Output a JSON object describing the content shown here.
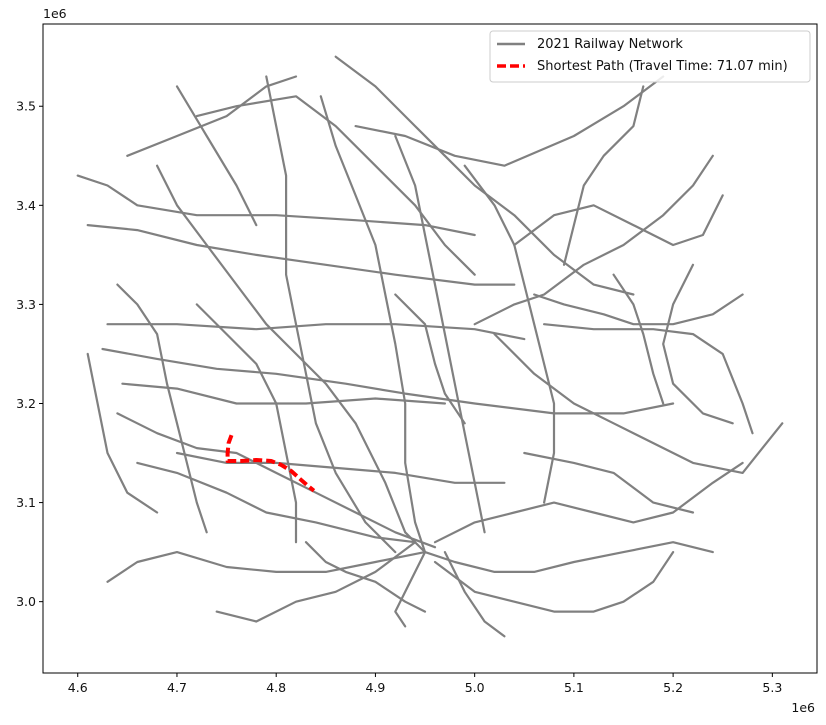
{
  "figure": {
    "x_offset_label": "1e6",
    "y_offset_label": "1e6"
  },
  "map_data": {
    "type": "line",
    "xlim": [
      4.565,
      5.345
    ],
    "ylim": [
      2.928,
      3.583
    ],
    "x_ticks": [
      {
        "value": 4.6,
        "label": "4.6"
      },
      {
        "value": 4.7,
        "label": "4.7"
      },
      {
        "value": 4.8,
        "label": "4.8"
      },
      {
        "value": 4.9,
        "label": "4.9"
      },
      {
        "value": 5.0,
        "label": "5.0"
      },
      {
        "value": 5.1,
        "label": "5.1"
      },
      {
        "value": 5.2,
        "label": "5.2"
      },
      {
        "value": 5.3,
        "label": "5.3"
      }
    ],
    "y_ticks": [
      {
        "value": 3.0,
        "label": "3.0"
      },
      {
        "value": 3.1,
        "label": "3.1"
      },
      {
        "value": 3.2,
        "label": "3.2"
      },
      {
        "value": 3.3,
        "label": "3.3"
      },
      {
        "value": 3.4,
        "label": "3.4"
      },
      {
        "value": 3.5,
        "label": "3.5"
      }
    ],
    "legend": {
      "position": "upper right",
      "entries": [
        {
          "label": "2021 Railway Network",
          "color": "#808080",
          "style": "solid"
        },
        {
          "label": "Shortest Path (Travel Time: 71.07 min)",
          "color": "#ff0000",
          "style": "dashed"
        }
      ]
    },
    "network_color": "#808080",
    "path_color": "#ff0000",
    "network_lines": [
      [
        [
          4.61,
          3.38
        ],
        [
          4.66,
          3.375
        ],
        [
          4.72,
          3.36
        ],
        [
          4.78,
          3.35
        ],
        [
          4.85,
          3.34
        ],
        [
          4.92,
          3.33
        ],
        [
          5.0,
          3.32
        ],
        [
          5.04,
          3.32
        ]
      ],
      [
        [
          4.6,
          3.43
        ],
        [
          4.63,
          3.42
        ],
        [
          4.66,
          3.4
        ],
        [
          4.72,
          3.39
        ],
        [
          4.8,
          3.39
        ],
        [
          4.88,
          3.385
        ],
        [
          4.95,
          3.38
        ],
        [
          5.0,
          3.37
        ]
      ],
      [
        [
          4.63,
          3.28
        ],
        [
          4.7,
          3.28
        ],
        [
          4.78,
          3.275
        ],
        [
          4.85,
          3.28
        ],
        [
          4.92,
          3.28
        ],
        [
          5.0,
          3.275
        ],
        [
          5.05,
          3.265
        ]
      ],
      [
        [
          4.625,
          3.255
        ],
        [
          4.68,
          3.245
        ],
        [
          4.74,
          3.235
        ],
        [
          4.8,
          3.23
        ],
        [
          4.87,
          3.22
        ],
        [
          4.93,
          3.21
        ],
        [
          5.0,
          3.2
        ],
        [
          5.08,
          3.19
        ],
        [
          5.15,
          3.19
        ],
        [
          5.2,
          3.2
        ]
      ],
      [
        [
          4.645,
          3.22
        ],
        [
          4.7,
          3.215
        ],
        [
          4.76,
          3.2
        ],
        [
          4.83,
          3.2
        ],
        [
          4.9,
          3.205
        ],
        [
          4.97,
          3.2
        ]
      ],
      [
        [
          4.64,
          3.19
        ],
        [
          4.68,
          3.17
        ],
        [
          4.72,
          3.155
        ],
        [
          4.76,
          3.15
        ],
        [
          4.8,
          3.13
        ],
        [
          4.84,
          3.11
        ],
        [
          4.88,
          3.09
        ],
        [
          4.92,
          3.07
        ],
        [
          4.96,
          3.055
        ]
      ],
      [
        [
          4.7,
          3.15
        ],
        [
          4.75,
          3.14
        ],
        [
          4.8,
          3.14
        ],
        [
          4.86,
          3.135
        ],
        [
          4.92,
          3.13
        ],
        [
          4.98,
          3.12
        ],
        [
          5.03,
          3.12
        ]
      ],
      [
        [
          4.66,
          3.14
        ],
        [
          4.7,
          3.13
        ],
        [
          4.75,
          3.11
        ],
        [
          4.79,
          3.09
        ],
        [
          4.84,
          3.08
        ],
        [
          4.9,
          3.065
        ],
        [
          4.94,
          3.06
        ]
      ],
      [
        [
          4.72,
          3.49
        ],
        [
          4.76,
          3.5
        ],
        [
          4.82,
          3.51
        ],
        [
          4.86,
          3.48
        ],
        [
          4.9,
          3.44
        ],
        [
          4.94,
          3.4
        ],
        [
          4.97,
          3.36
        ],
        [
          5.0,
          3.33
        ]
      ],
      [
        [
          4.65,
          3.45
        ],
        [
          4.7,
          3.47
        ],
        [
          4.75,
          3.49
        ],
        [
          4.79,
          3.52
        ],
        [
          4.82,
          3.53
        ]
      ],
      [
        [
          4.68,
          3.44
        ],
        [
          4.7,
          3.4
        ],
        [
          4.73,
          3.36
        ],
        [
          4.76,
          3.32
        ],
        [
          4.79,
          3.28
        ],
        [
          4.82,
          3.25
        ],
        [
          4.85,
          3.22
        ],
        [
          4.88,
          3.18
        ],
        [
          4.91,
          3.12
        ],
        [
          4.93,
          3.07
        ],
        [
          4.95,
          3.05
        ]
      ],
      [
        [
          4.79,
          3.53
        ],
        [
          4.8,
          3.48
        ],
        [
          4.81,
          3.43
        ],
        [
          4.81,
          3.38
        ],
        [
          4.81,
          3.33
        ],
        [
          4.82,
          3.28
        ],
        [
          4.83,
          3.23
        ],
        [
          4.84,
          3.18
        ],
        [
          4.86,
          3.13
        ],
        [
          4.89,
          3.08
        ],
        [
          4.92,
          3.05
        ]
      ],
      [
        [
          4.845,
          3.51
        ],
        [
          4.86,
          3.46
        ],
        [
          4.88,
          3.41
        ],
        [
          4.9,
          3.36
        ],
        [
          4.91,
          3.31
        ],
        [
          4.92,
          3.26
        ],
        [
          4.93,
          3.2
        ],
        [
          4.93,
          3.14
        ],
        [
          4.94,
          3.08
        ],
        [
          4.95,
          3.05
        ]
      ],
      [
        [
          4.86,
          3.55
        ],
        [
          4.9,
          3.52
        ],
        [
          4.94,
          3.48
        ],
        [
          4.97,
          3.45
        ],
        [
          5.0,
          3.42
        ],
        [
          5.04,
          3.39
        ],
        [
          5.08,
          3.35
        ],
        [
          5.12,
          3.32
        ],
        [
          5.16,
          3.31
        ]
      ],
      [
        [
          4.88,
          3.48
        ],
        [
          4.93,
          3.47
        ],
        [
          4.98,
          3.45
        ],
        [
          5.03,
          3.44
        ],
        [
          5.1,
          3.47
        ],
        [
          5.15,
          3.5
        ],
        [
          5.19,
          3.53
        ]
      ],
      [
        [
          4.99,
          3.44
        ],
        [
          5.02,
          3.4
        ],
        [
          5.04,
          3.36
        ],
        [
          5.05,
          3.32
        ],
        [
          5.06,
          3.28
        ],
        [
          5.07,
          3.24
        ],
        [
          5.08,
          3.2
        ],
        [
          5.08,
          3.15
        ],
        [
          5.07,
          3.1
        ]
      ],
      [
        [
          5.09,
          3.34
        ],
        [
          5.1,
          3.38
        ],
        [
          5.11,
          3.42
        ],
        [
          5.13,
          3.45
        ],
        [
          5.16,
          3.48
        ],
        [
          5.17,
          3.52
        ]
      ],
      [
        [
          5.06,
          3.31
        ],
        [
          5.09,
          3.3
        ],
        [
          5.13,
          3.29
        ],
        [
          5.16,
          3.28
        ],
        [
          5.2,
          3.28
        ],
        [
          5.24,
          3.29
        ],
        [
          5.27,
          3.31
        ]
      ],
      [
        [
          5.07,
          3.28
        ],
        [
          5.12,
          3.275
        ],
        [
          5.18,
          3.275
        ],
        [
          5.22,
          3.27
        ],
        [
          5.25,
          3.25
        ],
        [
          5.27,
          3.2
        ],
        [
          5.28,
          3.17
        ]
      ],
      [
        [
          5.02,
          3.27
        ],
        [
          5.06,
          3.23
        ],
        [
          5.1,
          3.2
        ],
        [
          5.14,
          3.18
        ],
        [
          5.18,
          3.16
        ],
        [
          5.22,
          3.14
        ],
        [
          5.27,
          3.13
        ],
        [
          5.31,
          3.18
        ]
      ],
      [
        [
          5.04,
          3.36
        ],
        [
          5.08,
          3.39
        ],
        [
          5.12,
          3.4
        ],
        [
          5.16,
          3.38
        ],
        [
          5.2,
          3.36
        ],
        [
          5.23,
          3.37
        ],
        [
          5.25,
          3.41
        ]
      ],
      [
        [
          5.0,
          3.28
        ],
        [
          5.04,
          3.3
        ],
        [
          5.07,
          3.31
        ],
        [
          5.11,
          3.34
        ],
        [
          5.15,
          3.36
        ],
        [
          5.19,
          3.39
        ],
        [
          5.22,
          3.42
        ],
        [
          5.24,
          3.45
        ]
      ],
      [
        [
          4.95,
          3.05
        ],
        [
          4.98,
          3.04
        ],
        [
          5.02,
          3.03
        ],
        [
          5.06,
          3.03
        ],
        [
          5.1,
          3.04
        ],
        [
          5.15,
          3.05
        ],
        [
          5.2,
          3.06
        ],
        [
          5.24,
          3.05
        ]
      ],
      [
        [
          4.96,
          3.06
        ],
        [
          5.0,
          3.08
        ],
        [
          5.04,
          3.09
        ],
        [
          5.08,
          3.1
        ],
        [
          5.12,
          3.09
        ],
        [
          5.16,
          3.08
        ],
        [
          5.2,
          3.09
        ],
        [
          5.24,
          3.12
        ],
        [
          5.27,
          3.14
        ]
      ],
      [
        [
          4.96,
          3.04
        ],
        [
          5.0,
          3.01
        ],
        [
          5.04,
          3.0
        ],
        [
          5.08,
          2.99
        ],
        [
          5.12,
          2.99
        ],
        [
          5.15,
          3.0
        ],
        [
          5.18,
          3.02
        ],
        [
          5.2,
          3.05
        ]
      ],
      [
        [
          4.95,
          3.05
        ],
        [
          4.93,
          3.01
        ],
        [
          4.92,
          2.99
        ],
        [
          4.93,
          2.975
        ]
      ],
      [
        [
          4.97,
          3.05
        ],
        [
          4.99,
          3.01
        ],
        [
          5.01,
          2.98
        ],
        [
          5.03,
          2.965
        ]
      ],
      [
        [
          4.95,
          3.05
        ],
        [
          4.9,
          3.04
        ],
        [
          4.85,
          3.03
        ],
        [
          4.8,
          3.03
        ],
        [
          4.75,
          3.035
        ],
        [
          4.7,
          3.05
        ],
        [
          4.66,
          3.04
        ],
        [
          4.63,
          3.02
        ]
      ],
      [
        [
          4.94,
          3.06
        ],
        [
          4.9,
          3.03
        ],
        [
          4.86,
          3.01
        ],
        [
          4.82,
          3.0
        ],
        [
          4.78,
          2.98
        ],
        [
          4.74,
          2.99
        ]
      ],
      [
        [
          4.83,
          3.06
        ],
        [
          4.85,
          3.04
        ],
        [
          4.87,
          3.03
        ],
        [
          4.9,
          3.02
        ],
        [
          4.93,
          3.0
        ],
        [
          4.95,
          2.99
        ]
      ],
      [
        [
          4.64,
          3.32
        ],
        [
          4.66,
          3.3
        ],
        [
          4.68,
          3.27
        ],
        [
          4.69,
          3.22
        ],
        [
          4.7,
          3.18
        ],
        [
          4.71,
          3.14
        ],
        [
          4.72,
          3.1
        ],
        [
          4.73,
          3.07
        ]
      ],
      [
        [
          4.72,
          3.3
        ],
        [
          4.75,
          3.27
        ],
        [
          4.78,
          3.24
        ],
        [
          4.8,
          3.2
        ],
        [
          4.81,
          3.15
        ],
        [
          4.82,
          3.1
        ],
        [
          4.82,
          3.06
        ]
      ],
      [
        [
          4.92,
          3.47
        ],
        [
          4.94,
          3.42
        ],
        [
          4.95,
          3.37
        ],
        [
          4.96,
          3.32
        ],
        [
          4.97,
          3.27
        ],
        [
          4.98,
          3.22
        ],
        [
          4.99,
          3.17
        ],
        [
          5.0,
          3.12
        ],
        [
          5.01,
          3.07
        ]
      ],
      [
        [
          5.05,
          3.15
        ],
        [
          5.1,
          3.14
        ],
        [
          5.14,
          3.13
        ],
        [
          5.18,
          3.1
        ],
        [
          5.22,
          3.09
        ]
      ],
      [
        [
          4.92,
          3.31
        ],
        [
          4.95,
          3.28
        ],
        [
          4.96,
          3.24
        ],
        [
          4.97,
          3.21
        ],
        [
          4.99,
          3.18
        ]
      ],
      [
        [
          5.14,
          3.33
        ],
        [
          5.16,
          3.3
        ],
        [
          5.17,
          3.27
        ],
        [
          5.18,
          3.23
        ],
        [
          5.19,
          3.2
        ]
      ],
      [
        [
          5.22,
          3.34
        ],
        [
          5.2,
          3.3
        ],
        [
          5.19,
          3.26
        ],
        [
          5.2,
          3.22
        ],
        [
          5.23,
          3.19
        ],
        [
          5.26,
          3.18
        ]
      ],
      [
        [
          4.7,
          3.52
        ],
        [
          4.73,
          3.47
        ],
        [
          4.76,
          3.42
        ],
        [
          4.78,
          3.38
        ]
      ],
      [
        [
          4.61,
          3.25
        ],
        [
          4.62,
          3.2
        ],
        [
          4.63,
          3.15
        ],
        [
          4.65,
          3.11
        ],
        [
          4.68,
          3.09
        ]
      ]
    ],
    "shortest_path": [
      [
        4.755,
        3.168
      ],
      [
        4.752,
        3.16
      ],
      [
        4.751,
        3.15
      ],
      [
        4.751,
        3.142
      ],
      [
        4.765,
        3.142
      ],
      [
        4.78,
        3.143
      ],
      [
        4.795,
        3.142
      ],
      [
        4.805,
        3.138
      ],
      [
        4.815,
        3.132
      ],
      [
        4.825,
        3.123
      ],
      [
        4.833,
        3.116
      ],
      [
        4.838,
        3.112
      ]
    ]
  }
}
